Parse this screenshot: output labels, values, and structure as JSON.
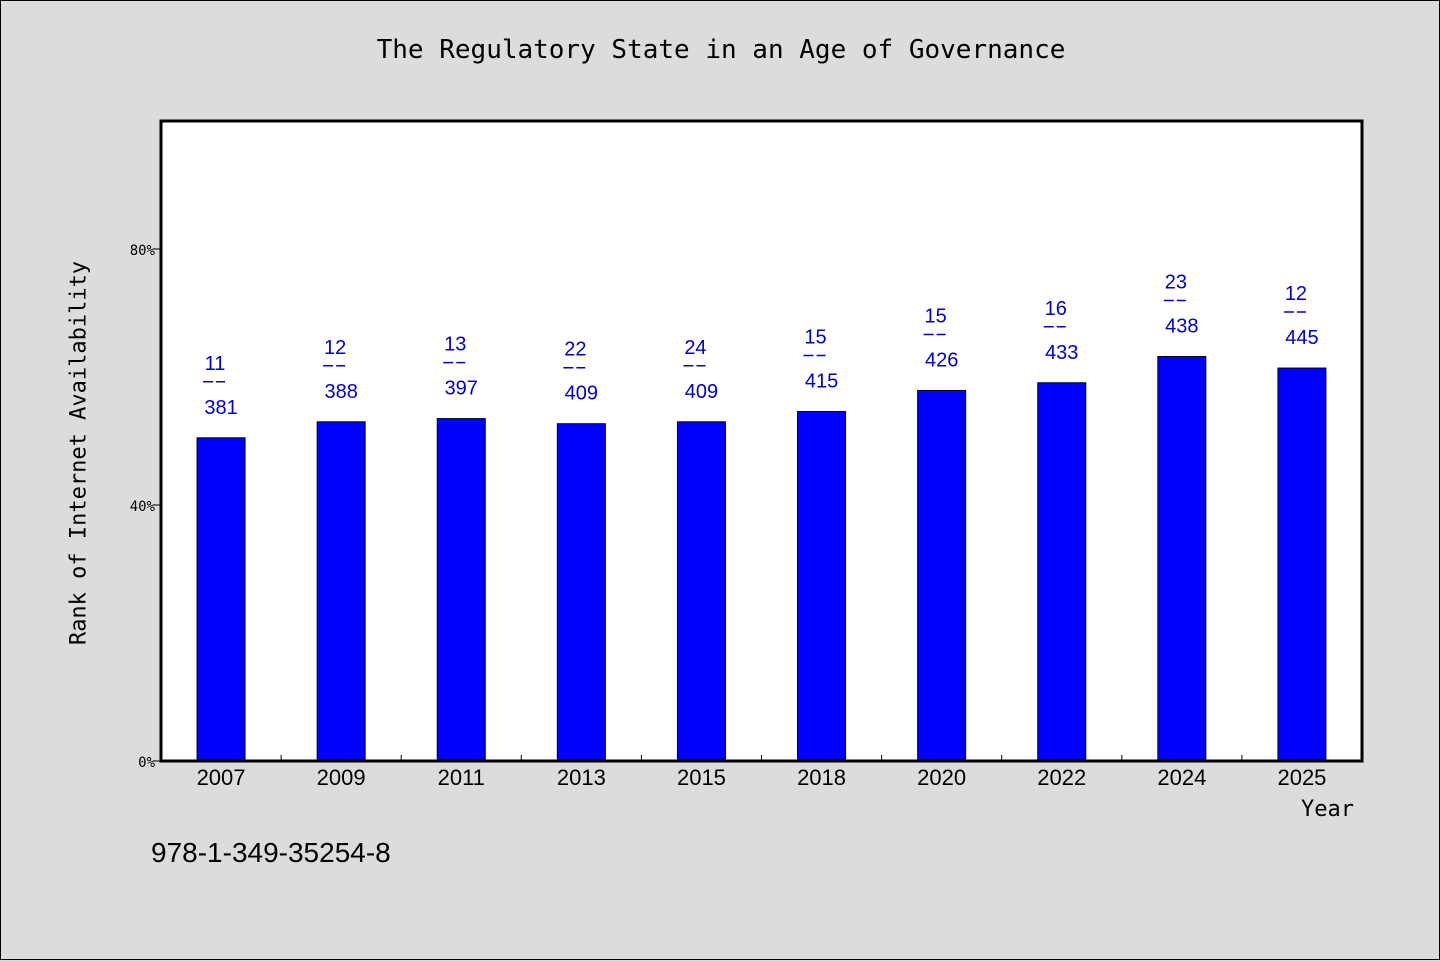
{
  "title": "The Regulatory State in an Age of Governance",
  "ylabel": "Rank of Internet Availability",
  "xlabel": "Year",
  "isbn": "978-1-349-35254-8",
  "chart_data": {
    "type": "bar",
    "title": "The Regulatory State in an Age of Governance",
    "xlabel": "Year",
    "ylabel": "Rank of Internet Availability",
    "ylim": [
      0,
      100
    ],
    "yticks": [
      0,
      40,
      80
    ],
    "ytick_labels": [
      "0%",
      "40%",
      "80%"
    ],
    "categories": [
      "2007",
      "2009",
      "2011",
      "2013",
      "2015",
      "2018",
      "2020",
      "2022",
      "2024",
      "2025"
    ],
    "values": [
      50.5,
      53.0,
      53.5,
      52.7,
      53.0,
      54.6,
      57.9,
      59.1,
      63.2,
      61.4
    ],
    "label_top": [
      "11",
      "12",
      "13",
      "22",
      "24",
      "15",
      "15",
      "16",
      "23",
      "12"
    ],
    "label_bottom": [
      "381",
      "388",
      "397",
      "409",
      "409",
      "415",
      "426",
      "433",
      "438",
      "445"
    ],
    "bar_color": "#0000ff",
    "label_color": "#0000cc",
    "grid": false,
    "legend": false
  }
}
